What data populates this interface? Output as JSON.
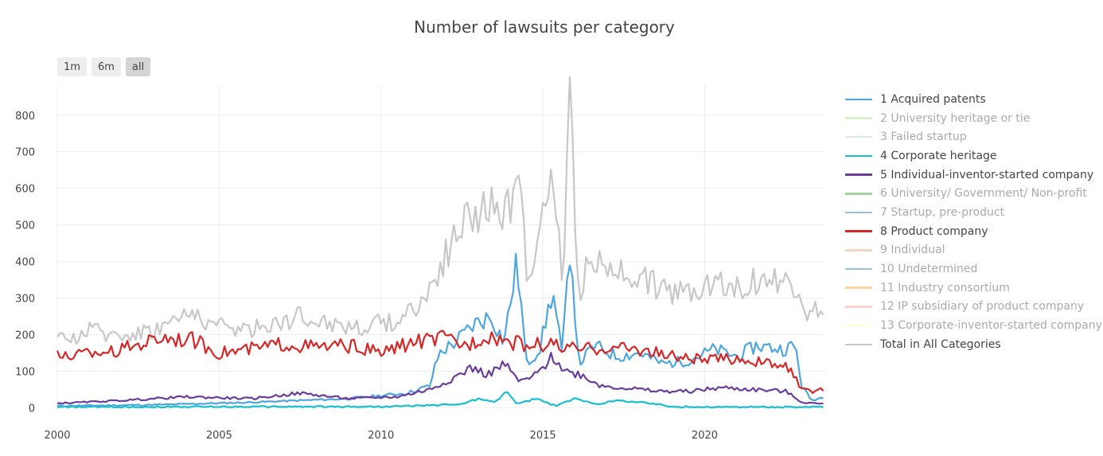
{
  "chart_data": {
    "type": "line",
    "title": "Number of lawsuits per category",
    "xlabel": "",
    "ylabel": "",
    "xlim": [
      2000,
      2023.7
    ],
    "ylim": [
      -10,
      880
    ],
    "x_ticks": [
      "2000",
      "2005",
      "2010",
      "2015",
      "2020"
    ],
    "x_tick_values": [
      2000,
      2005,
      2010,
      2015,
      2020
    ],
    "y_ticks": [
      "0",
      "100",
      "200",
      "300",
      "400",
      "500",
      "600",
      "700",
      "800"
    ],
    "y_tick_values": [
      0,
      100,
      200,
      300,
      400,
      500,
      600,
      700,
      800
    ],
    "grid": true,
    "legend_placement": "right",
    "range_buttons": [
      {
        "label": "1m",
        "active": false
      },
      {
        "label": "6m",
        "active": false
      },
      {
        "label": "all",
        "active": true
      }
    ],
    "series": [
      {
        "name": "1 Acquired patents",
        "color": "#4ea6dc",
        "visible": true,
        "points": [
          [
            2000,
            5
          ],
          [
            2003,
            8
          ],
          [
            2006,
            15
          ],
          [
            2009,
            25
          ],
          [
            2010.8,
            40
          ],
          [
            2011.5,
            60
          ],
          [
            2011.8,
            150
          ],
          [
            2012.3,
            180
          ],
          [
            2012.9,
            230
          ],
          [
            2013.4,
            250
          ],
          [
            2013.8,
            180
          ],
          [
            2014.2,
            400
          ],
          [
            2014.5,
            120
          ],
          [
            2014.9,
            160
          ],
          [
            2015.3,
            320
          ],
          [
            2015.6,
            140
          ],
          [
            2015.85,
            460
          ],
          [
            2016.1,
            120
          ],
          [
            2016.6,
            170
          ],
          [
            2017.3,
            140
          ],
          [
            2018,
            150
          ],
          [
            2018.7,
            120
          ],
          [
            2019.5,
            130
          ],
          [
            2020.3,
            160
          ],
          [
            2021,
            140
          ],
          [
            2021.6,
            170
          ],
          [
            2022.4,
            160
          ],
          [
            2022.8,
            170
          ],
          [
            2023,
            60
          ],
          [
            2023.3,
            20
          ],
          [
            2023.7,
            30
          ]
        ]
      },
      {
        "name": "2 University heritage or tie",
        "color": "#b2df8a",
        "visible": false,
        "points": []
      },
      {
        "name": "3 Failed startup",
        "color": "#a6cee3",
        "visible": false,
        "points": []
      },
      {
        "name": "4 Corporate heritage",
        "color": "#17becf",
        "visible": true,
        "points": [
          [
            2000,
            2
          ],
          [
            2005,
            3
          ],
          [
            2010,
            3
          ],
          [
            2011,
            5
          ],
          [
            2012.5,
            10
          ],
          [
            2013,
            25
          ],
          [
            2013.5,
            15
          ],
          [
            2013.9,
            45
          ],
          [
            2014.2,
            10
          ],
          [
            2014.8,
            25
          ],
          [
            2015.4,
            5
          ],
          [
            2016,
            25
          ],
          [
            2016.7,
            10
          ],
          [
            2017.3,
            20
          ],
          [
            2018,
            15
          ],
          [
            2018.5,
            10
          ],
          [
            2019,
            3
          ],
          [
            2020,
            2
          ],
          [
            2023.7,
            2
          ]
        ]
      },
      {
        "name": "5 Individual-inventor-started company",
        "color": "#6a3d9a",
        "visible": true,
        "points": [
          [
            2000,
            12
          ],
          [
            2002,
            20
          ],
          [
            2004,
            30
          ],
          [
            2006,
            25
          ],
          [
            2007.5,
            40
          ],
          [
            2009,
            25
          ],
          [
            2010.5,
            30
          ],
          [
            2011.5,
            50
          ],
          [
            2012.2,
            80
          ],
          [
            2012.8,
            110
          ],
          [
            2013.3,
            90
          ],
          [
            2013.8,
            120
          ],
          [
            2014.3,
            70
          ],
          [
            2014.8,
            90
          ],
          [
            2015.3,
            140
          ],
          [
            2015.7,
            100
          ],
          [
            2016.2,
            90
          ],
          [
            2016.8,
            60
          ],
          [
            2017.5,
            55
          ],
          [
            2018.5,
            45
          ],
          [
            2019.5,
            45
          ],
          [
            2020.5,
            55
          ],
          [
            2021.5,
            50
          ],
          [
            2022.5,
            45
          ],
          [
            2023,
            15
          ],
          [
            2023.7,
            10
          ]
        ]
      },
      {
        "name": "6 University/ Government/ Non-profit",
        "color": "#33a02c",
        "visible": false,
        "points": []
      },
      {
        "name": "7 Startup, pre-product",
        "color": "#1f78b4",
        "visible": false,
        "points": []
      },
      {
        "name": "8 Product company",
        "color": "#d62728",
        "visible": true,
        "points": [
          [
            2000,
            140
          ],
          [
            2001,
            150
          ],
          [
            2002,
            160
          ],
          [
            2003.3,
            195
          ],
          [
            2004.2,
            185
          ],
          [
            2005,
            150
          ],
          [
            2006,
            160
          ],
          [
            2007,
            175
          ],
          [
            2008,
            165
          ],
          [
            2009,
            170
          ],
          [
            2010,
            150
          ],
          [
            2011,
            180
          ],
          [
            2012,
            190
          ],
          [
            2012.6,
            170
          ],
          [
            2013.3,
            200
          ],
          [
            2014,
            180
          ],
          [
            2014.6,
            170
          ],
          [
            2015.2,
            175
          ],
          [
            2015.8,
            160
          ],
          [
            2016.3,
            160
          ],
          [
            2017,
            165
          ],
          [
            2018,
            160
          ],
          [
            2019,
            140
          ],
          [
            2020,
            130
          ],
          [
            2021,
            135
          ],
          [
            2022,
            120
          ],
          [
            2022.6,
            110
          ],
          [
            2023,
            50
          ],
          [
            2023.3,
            45
          ],
          [
            2023.7,
            50
          ]
        ]
      },
      {
        "name": "9 Individual",
        "color": "#e6a57a",
        "visible": false,
        "points": []
      },
      {
        "name": "10 Undetermined",
        "color": "#1f78b4",
        "visible": false,
        "points": []
      },
      {
        "name": "11 Industry consortium",
        "color": "#ff9f2a",
        "visible": false,
        "points": []
      },
      {
        "name": "12 IP subsidiary of product company",
        "color": "#fb9a99",
        "visible": false,
        "points": []
      },
      {
        "name": "13 Corporate-inventor-started company",
        "color": "#ffff99",
        "visible": false,
        "points": []
      },
      {
        "name": "Total in All Categories",
        "color": "#c7c7c7",
        "visible": true,
        "points": [
          [
            2000,
            180
          ],
          [
            2001,
            210
          ],
          [
            2002,
            200
          ],
          [
            2003,
            215
          ],
          [
            2004.2,
            260
          ],
          [
            2005,
            220
          ],
          [
            2006,
            215
          ],
          [
            2007.5,
            250
          ],
          [
            2008.5,
            230
          ],
          [
            2009.5,
            220
          ],
          [
            2010.5,
            240
          ],
          [
            2011.4,
            300
          ],
          [
            2011.8,
            380
          ],
          [
            2012.4,
            480
          ],
          [
            2012.9,
            540
          ],
          [
            2013.3,
            560
          ],
          [
            2013.7,
            500
          ],
          [
            2014.1,
            580
          ],
          [
            2014.25,
            680
          ],
          [
            2014.5,
            380
          ],
          [
            2014.9,
            460
          ],
          [
            2015.3,
            650
          ],
          [
            2015.6,
            350
          ],
          [
            2015.85,
            845
          ],
          [
            2016.1,
            300
          ],
          [
            2016.5,
            420
          ],
          [
            2017,
            360
          ],
          [
            2017.5,
            380
          ],
          [
            2018,
            360
          ],
          [
            2018.7,
            320
          ],
          [
            2019.5,
            320
          ],
          [
            2020.3,
            350
          ],
          [
            2021,
            330
          ],
          [
            2021.8,
            350
          ],
          [
            2022.5,
            340
          ],
          [
            2022.9,
            330
          ],
          [
            2023.2,
            240
          ],
          [
            2023.5,
            270
          ],
          [
            2023.7,
            240
          ]
        ]
      }
    ]
  }
}
